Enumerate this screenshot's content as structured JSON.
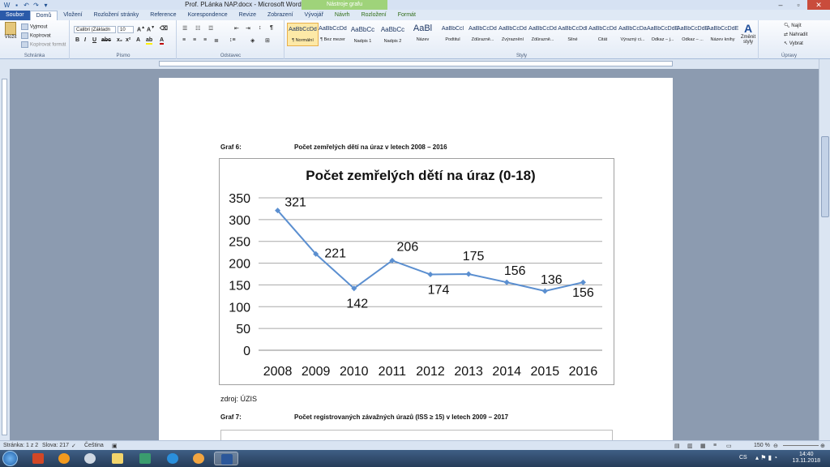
{
  "window": {
    "title": "Prof. PLánka NAP.docx - Microsoft Word",
    "context_tab_group": "Nástroje grafu"
  },
  "tabs": [
    "Soubor",
    "Domů",
    "Vložení",
    "Rozložení stránky",
    "Reference",
    "Korespondence",
    "Revize",
    "Zobrazení",
    "Vývojář",
    "Návrh",
    "Rozložení",
    "Formát"
  ],
  "ribbon": {
    "clipboard": {
      "paste": "Vložit",
      "cut": "Vyjmout",
      "copy": "Kopírovat",
      "format_painter": "Kopírovat formát",
      "label": "Schránka"
    },
    "font": {
      "name": "Calibri (Základn",
      "size": "10",
      "label": "Písmo"
    },
    "paragraph": {
      "label": "Odstavec"
    },
    "styles": {
      "label": "Styly",
      "items": [
        {
          "sample": "AaBbCcDd",
          "name": "¶ Normální"
        },
        {
          "sample": "AaBbCcDd",
          "name": "¶ Bez mezer"
        },
        {
          "sample": "AaBbCc",
          "name": "Nadpis 1"
        },
        {
          "sample": "AaBbCc",
          "name": "Nadpis 2"
        },
        {
          "sample": "AaBl",
          "name": "Název"
        },
        {
          "sample": "AaBbCcl",
          "name": "Podtitul"
        },
        {
          "sample": "AaBbCcDd",
          "name": "Zdůrazně..."
        },
        {
          "sample": "AaBbCcDd",
          "name": "Zvýraznění"
        },
        {
          "sample": "AaBbCcDd",
          "name": "Zdůrazně..."
        },
        {
          "sample": "AaBbCcDdl",
          "name": "Silné"
        },
        {
          "sample": "AaBbCcDd",
          "name": "Citát"
        },
        {
          "sample": "AaBbCcDa",
          "name": "Výrazný ci..."
        },
        {
          "sample": "AaBbCcDdE",
          "name": "Odkaz – j..."
        },
        {
          "sample": "AaBbCcDdE",
          "name": "Odkaz – ..."
        },
        {
          "sample": "AaBbCcDdE",
          "name": "Název knihy"
        }
      ],
      "change_styles": "Změnit styly"
    },
    "editing": {
      "find": "Najít",
      "replace": "Nahradit",
      "select": "Vybrat",
      "label": "Úpravy"
    }
  },
  "document": {
    "graf6_label": "Graf 6:",
    "graf6_caption": "Počet zemřelých dětí na úraz v letech 2008 – 2016",
    "source": "zdroj: ÚZIS",
    "graf7_label": "Graf 7:",
    "graf7_caption": "Počet registrovaných závažných úrazů (ISS ≥ 15) v letech 2009 – 2017"
  },
  "chart_data": {
    "type": "line",
    "title": "Počet zemřelých dětí na úraz (0-18)",
    "categories": [
      "2008",
      "2009",
      "2010",
      "2011",
      "2012",
      "2013",
      "2014",
      "2015",
      "2016"
    ],
    "series": [
      {
        "values": [
          321,
          221,
          142,
          206,
          174,
          175,
          156,
          136,
          156
        ],
        "color": "#5b8fd0"
      }
    ],
    "data_labels": [
      "321",
      "221",
      "142",
      "206",
      "174",
      "175",
      "156",
      "136",
      "156"
    ],
    "ylim": [
      0,
      350
    ],
    "yticks": [
      "350",
      "300",
      "250",
      "200",
      "150",
      "100",
      "50",
      "0"
    ],
    "grid": true
  },
  "statusbar": {
    "page": "Stránka: 1 z 2",
    "words": "Slova: 217",
    "language": "Čeština",
    "zoom": "150 %"
  },
  "taskbar": {
    "lang": "CS",
    "time": "14:40",
    "date": "13.11.2018"
  }
}
